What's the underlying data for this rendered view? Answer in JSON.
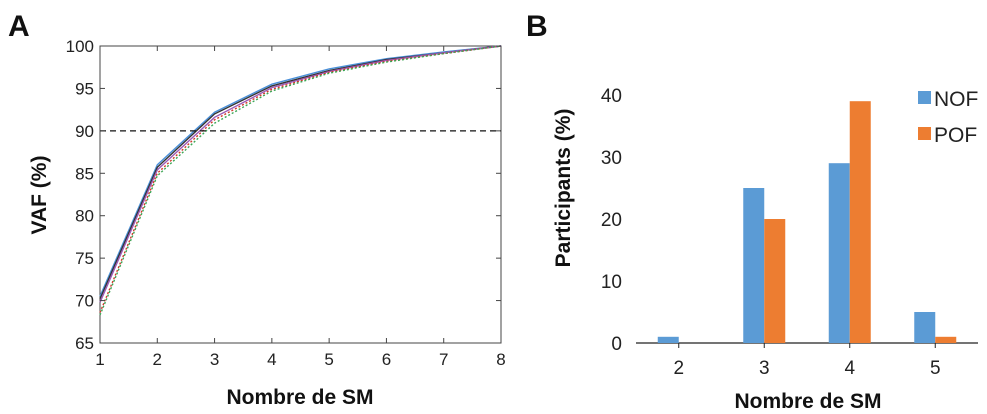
{
  "chart_data": [
    {
      "panel": "A",
      "type": "line",
      "xlabel": "Nombre de SM",
      "ylabel": "VAF (%)",
      "xlim": [
        1,
        8
      ],
      "ylim": [
        65,
        100
      ],
      "xticks": [
        1,
        2,
        3,
        4,
        5,
        6,
        7,
        8
      ],
      "yticks": [
        65,
        70,
        75,
        80,
        85,
        90,
        95,
        100
      ],
      "x": [
        1,
        2,
        3,
        4,
        5,
        6,
        7,
        8
      ],
      "threshold": {
        "y": 90,
        "style": "dashed"
      },
      "grid": false,
      "box": true,
      "series": [
        {
          "values": [
            70.5,
            86.0,
            92.2,
            95.5,
            97.3,
            98.5,
            99.3,
            100
          ],
          "color": "#4a90d9",
          "style": "solid"
        },
        {
          "values": [
            70.2,
            85.7,
            92.0,
            95.3,
            97.1,
            98.4,
            99.2,
            100
          ],
          "color": "#333333",
          "style": "solid"
        },
        {
          "values": [
            69.8,
            85.4,
            91.6,
            95.1,
            97.0,
            98.3,
            99.2,
            100
          ],
          "color": "#9b59b6",
          "style": "solid"
        },
        {
          "values": [
            68.6,
            85.0,
            91.3,
            94.9,
            96.9,
            98.2,
            99.1,
            100
          ],
          "color": "#d0392b",
          "style": "dotted"
        },
        {
          "values": [
            68.3,
            84.7,
            90.9,
            94.7,
            96.8,
            98.1,
            99.1,
            100
          ],
          "color": "#3aa655",
          "style": "dotted"
        }
      ]
    },
    {
      "panel": "B",
      "type": "bar",
      "xlabel": "Nombre de SM",
      "ylabel": "Participants  (%)",
      "categories": [
        "2",
        "3",
        "4",
        "5"
      ],
      "yticks": [
        0,
        10,
        20,
        30,
        40
      ],
      "ylim": [
        0,
        48
      ],
      "legend_position": "top-right",
      "grid": false,
      "series": [
        {
          "name": "NOF",
          "values": [
            1,
            25,
            29,
            5
          ],
          "color": "#5b9bd5"
        },
        {
          "name": "POF",
          "values": [
            0,
            20,
            39,
            1
          ],
          "color": "#ed7d31"
        }
      ]
    }
  ]
}
